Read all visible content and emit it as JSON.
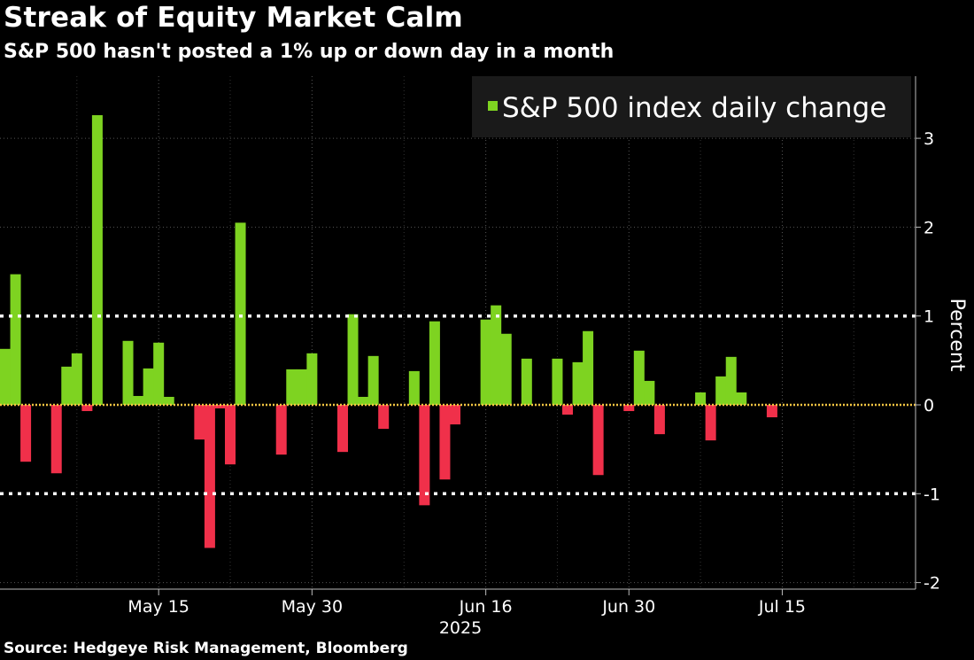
{
  "header": {
    "title": "Streak of Equity Market Calm",
    "subtitle": "S&P 500 hasn't posted a 1% up or down day in a month"
  },
  "footer": {
    "source": "Source: Hedgeye Risk Management, Bloomberg"
  },
  "colors": {
    "positive": "#7ed321",
    "negative": "#f0304a",
    "background": "#000000",
    "gridline": "#555555",
    "threshold": "#ffffff",
    "zero_line": "#f5c542",
    "legend_bg": "#1a1a1a"
  },
  "chart_data": {
    "type": "bar",
    "legend": "S&P 500 index daily change",
    "legend_position": "top-right",
    "ylabel": "Percent",
    "ylim": [
      -2,
      3.6
    ],
    "yticks": [
      3,
      2,
      1,
      0,
      -1,
      -2
    ],
    "grid": true,
    "threshold_lines": [
      1,
      -1
    ],
    "x_year_label": "2025",
    "xlim": [
      "2025-04-30",
      "2025-07-27"
    ],
    "xticks": [
      {
        "date": "2025-05-15",
        "label": "May 15"
      },
      {
        "date": "2025-05-30",
        "label": "May 30"
      },
      {
        "date": "2025-06-16",
        "label": "Jun 16"
      },
      {
        "date": "2025-06-30",
        "label": "Jun 30"
      },
      {
        "date": "2025-07-15",
        "label": "Jul 15"
      }
    ],
    "x": [
      "2025-04-30",
      "2025-05-01",
      "2025-05-02",
      "2025-05-05",
      "2025-05-06",
      "2025-05-07",
      "2025-05-08",
      "2025-05-09",
      "2025-05-12",
      "2025-05-13",
      "2025-05-14",
      "2025-05-15",
      "2025-05-16",
      "2025-05-19",
      "2025-05-20",
      "2025-05-21",
      "2025-05-22",
      "2025-05-23",
      "2025-05-27",
      "2025-05-28",
      "2025-05-29",
      "2025-05-30",
      "2025-06-02",
      "2025-06-03",
      "2025-06-04",
      "2025-06-05",
      "2025-06-06",
      "2025-06-09",
      "2025-06-10",
      "2025-06-11",
      "2025-06-12",
      "2025-06-13",
      "2025-06-16",
      "2025-06-17",
      "2025-06-18",
      "2025-06-20",
      "2025-06-23",
      "2025-06-24",
      "2025-06-25",
      "2025-06-26",
      "2025-06-27",
      "2025-06-30",
      "2025-07-01",
      "2025-07-02",
      "2025-07-03",
      "2025-07-07",
      "2025-07-08",
      "2025-07-09",
      "2025-07-10",
      "2025-07-11",
      "2025-07-14",
      "2025-07-15",
      "2025-07-16",
      "2025-07-17",
      "2025-07-18",
      "2025-07-21",
      "2025-07-22"
    ],
    "values": [
      0.63,
      1.47,
      -0.64,
      -0.77,
      0.43,
      0.58,
      -0.07,
      3.26,
      0.72,
      0.1,
      0.41,
      0.7,
      0.09,
      -0.39,
      -1.61,
      -0.04,
      -0.67,
      2.05,
      -0.56,
      0.4,
      0.4,
      0.58,
      -0.53,
      1.02,
      0.09,
      0.55,
      -0.27,
      0.38,
      -1.13,
      0.94,
      -0.84,
      -0.22,
      0.96,
      1.12,
      0.8,
      0.52,
      0.52,
      -0.11,
      0.48,
      0.83,
      -0.79,
      -0.07,
      0.61,
      0.27,
      -0.33,
      0.14,
      -0.4,
      0.32,
      0.54,
      0.14,
      -0.14,
      0.0,
      0.0,
      0.0,
      0.0,
      0.0,
      0.0
    ]
  }
}
